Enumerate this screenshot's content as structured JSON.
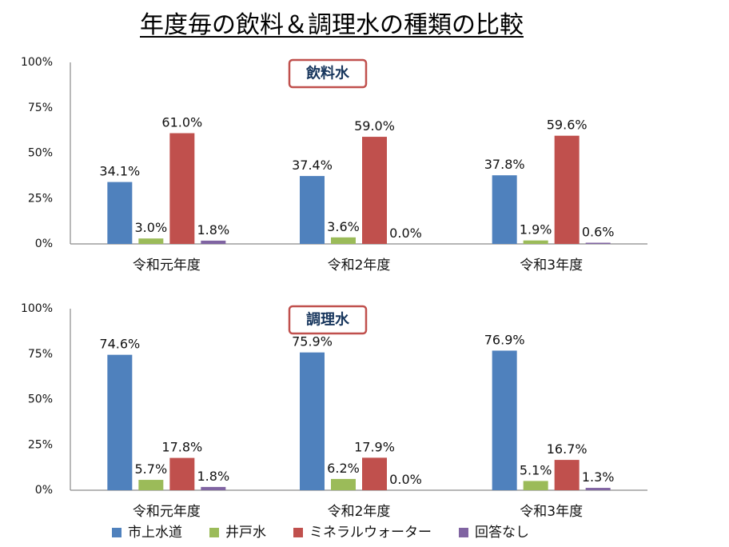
{
  "title": "年度毎の飲料＆調理水の種類の比較",
  "series": [
    {
      "name": "市上水道",
      "color": "#4f81bd"
    },
    {
      "name": "井戸水",
      "color": "#9bbb59"
    },
    {
      "name": "ミネラルウォーター",
      "color": "#c0504d"
    },
    {
      "name": "回答なし",
      "color": "#8064a2"
    }
  ],
  "chart_data": [
    {
      "type": "bar",
      "title": "飲料水",
      "categories": [
        "令和元年度",
        "令和2年度",
        "令和3年度"
      ],
      "ylim": [
        0,
        100
      ],
      "yticks": [
        "0%",
        "25%",
        "50%",
        "75%",
        "100%"
      ],
      "series": [
        {
          "name": "市上水道",
          "values": [
            34.1,
            37.4,
            37.8
          ],
          "labels": [
            "34.1%",
            "37.4%",
            "37.8%"
          ]
        },
        {
          "name": "井戸水",
          "values": [
            3.0,
            3.6,
            1.9
          ],
          "labels": [
            "3.0%",
            "3.6%",
            "1.9%"
          ]
        },
        {
          "name": "ミネラルウォーター",
          "values": [
            61.0,
            59.0,
            59.6
          ],
          "labels": [
            "61.0%",
            "59.0%",
            "59.6%"
          ]
        },
        {
          "name": "回答なし",
          "values": [
            1.8,
            0.0,
            0.6
          ],
          "labels": [
            "1.8%",
            "0.0%",
            "0.6%"
          ]
        }
      ]
    },
    {
      "type": "bar",
      "title": "調理水",
      "categories": [
        "令和元年度",
        "令和2年度",
        "令和3年度"
      ],
      "ylim": [
        0,
        100
      ],
      "yticks": [
        "0%",
        "25%",
        "50%",
        "75%",
        "100%"
      ],
      "series": [
        {
          "name": "市上水道",
          "values": [
            74.6,
            75.9,
            76.9
          ],
          "labels": [
            "74.6%",
            "75.9%",
            "76.9%"
          ]
        },
        {
          "name": "井戸水",
          "values": [
            5.7,
            6.2,
            5.1
          ],
          "labels": [
            "5.7%",
            "6.2%",
            "5.1%"
          ]
        },
        {
          "name": "ミネラルウォーター",
          "values": [
            17.8,
            17.9,
            16.7
          ],
          "labels": [
            "17.8%",
            "17.9%",
            "16.7%"
          ]
        },
        {
          "name": "回答なし",
          "values": [
            1.8,
            0.0,
            1.3
          ],
          "labels": [
            "1.8%",
            "0.0%",
            "1.3%"
          ]
        }
      ]
    }
  ]
}
